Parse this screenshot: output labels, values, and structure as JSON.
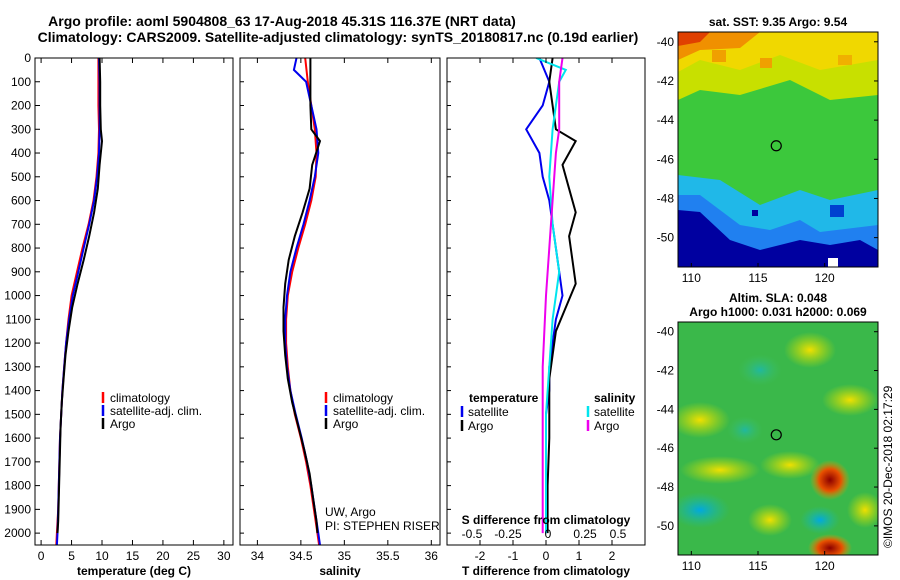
{
  "header": {
    "title1": "Argo profile: aoml 5904808_63 17-Aug-2018 45.31S 116.37E (NRT data)",
    "title2": "Climatology: CARS2009. Satellite-adjusted climatology: synTS_20180817.nc (0.19d earlier)"
  },
  "credit": {
    "line1": "UW, Argo",
    "line2": "PI: STEPHEN RISER"
  },
  "timestamp": "©IMOS 20-Dec-2018 02:17:29",
  "colors": {
    "climatology": "#ff0000",
    "satellite": "#0000ee",
    "argo": "#000000",
    "sat_salinity": "#00e5ee",
    "argo_salinity": "#ee00ee"
  },
  "chart_data": [
    {
      "type": "line",
      "xlabel": "temperature (deg C)",
      "ylabel": "",
      "xlim": [
        -1,
        31.5
      ],
      "ylim": [
        2050,
        0
      ],
      "xticks": [
        0,
        5,
        10,
        15,
        20,
        25,
        30
      ],
      "yticks": [
        0,
        100,
        200,
        300,
        400,
        500,
        600,
        700,
        800,
        900,
        1000,
        1100,
        1200,
        1300,
        1400,
        1500,
        1600,
        1700,
        1800,
        1900,
        2000
      ],
      "legend": [
        "climatology",
        "satellite-adj. clim.",
        "Argo"
      ],
      "legend_position": "lower-right",
      "series": [
        {
          "name": "climatology",
          "color": "#ff0000",
          "points": [
            [
              9.4,
              0
            ],
            [
              9.4,
              100
            ],
            [
              9.4,
              200
            ],
            [
              9.5,
              300
            ],
            [
              9.4,
              400
            ],
            [
              9.1,
              500
            ],
            [
              8.6,
              600
            ],
            [
              7.8,
              700
            ],
            [
              6.8,
              800
            ],
            [
              5.9,
              900
            ],
            [
              5.0,
              1000
            ],
            [
              4.5,
              1100
            ],
            [
              4.1,
              1200
            ],
            [
              3.8,
              1300
            ],
            [
              3.5,
              1400
            ],
            [
              3.3,
              1500
            ],
            [
              3.1,
              1600
            ],
            [
              3.0,
              1700
            ],
            [
              2.9,
              1800
            ],
            [
              2.8,
              1900
            ],
            [
              2.6,
              2000
            ],
            [
              2.5,
              2050
            ]
          ]
        },
        {
          "name": "satellite-adj. clim.",
          "color": "#0000ee",
          "points": [
            [
              9.5,
              0
            ],
            [
              9.6,
              100
            ],
            [
              9.6,
              200
            ],
            [
              9.6,
              300
            ],
            [
              9.5,
              400
            ],
            [
              9.2,
              500
            ],
            [
              8.7,
              600
            ],
            [
              7.9,
              700
            ],
            [
              7.0,
              800
            ],
            [
              6.1,
              900
            ],
            [
              5.2,
              1000
            ],
            [
              4.6,
              1100
            ],
            [
              4.1,
              1200
            ],
            [
              3.8,
              1300
            ],
            [
              3.5,
              1400
            ],
            [
              3.3,
              1500
            ],
            [
              3.1,
              1600
            ],
            [
              3.0,
              1700
            ],
            [
              2.9,
              1800
            ],
            [
              2.8,
              1900
            ],
            [
              2.7,
              2000
            ],
            [
              2.6,
              2050
            ]
          ]
        },
        {
          "name": "Argo",
          "color": "#000000",
          "points": [
            [
              9.6,
              0
            ],
            [
              9.7,
              100
            ],
            [
              9.7,
              200
            ],
            [
              9.8,
              300
            ],
            [
              10.0,
              350
            ],
            [
              9.6,
              450
            ],
            [
              9.3,
              550
            ],
            [
              8.7,
              650
            ],
            [
              7.9,
              750
            ],
            [
              7.0,
              850
            ],
            [
              6.0,
              950
            ],
            [
              5.1,
              1050
            ],
            [
              4.5,
              1150
            ],
            [
              4.0,
              1250
            ],
            [
              3.7,
              1350
            ],
            [
              3.4,
              1450
            ],
            [
              3.2,
              1550
            ],
            [
              3.1,
              1650
            ],
            [
              3.0,
              1750
            ],
            [
              2.9,
              1850
            ],
            [
              2.8,
              1950
            ],
            [
              2.7,
              2000
            ]
          ]
        }
      ]
    },
    {
      "type": "line",
      "xlabel": "salinity",
      "xlim": [
        33.8,
        36.1
      ],
      "ylim": [
        2050,
        0
      ],
      "xticks": [
        34,
        34.5,
        35,
        35.5,
        36
      ],
      "legend": [
        "climatology",
        "satellite-adj. clim.",
        "Argo"
      ],
      "legend_position": "lower-right",
      "series": [
        {
          "name": "climatology",
          "color": "#ff0000",
          "points": [
            [
              34.55,
              0
            ],
            [
              34.58,
              100
            ],
            [
              34.62,
              200
            ],
            [
              34.66,
              300
            ],
            [
              34.68,
              400
            ],
            [
              34.67,
              500
            ],
            [
              34.62,
              600
            ],
            [
              34.55,
              700
            ],
            [
              34.47,
              800
            ],
            [
              34.4,
              900
            ],
            [
              34.35,
              1000
            ],
            [
              34.33,
              1100
            ],
            [
              34.33,
              1200
            ],
            [
              34.35,
              1300
            ],
            [
              34.38,
              1400
            ],
            [
              34.43,
              1500
            ],
            [
              34.5,
              1600
            ],
            [
              34.56,
              1700
            ],
            [
              34.61,
              1800
            ],
            [
              34.65,
              1900
            ],
            [
              34.69,
              2000
            ],
            [
              34.71,
              2050
            ]
          ]
        },
        {
          "name": "satellite-adj. clim.",
          "color": "#0000ee",
          "points": [
            [
              34.45,
              0
            ],
            [
              34.42,
              50
            ],
            [
              34.56,
              100
            ],
            [
              34.62,
              200
            ],
            [
              34.68,
              300
            ],
            [
              34.7,
              400
            ],
            [
              34.66,
              500
            ],
            [
              34.6,
              600
            ],
            [
              34.53,
              700
            ],
            [
              34.45,
              800
            ],
            [
              34.38,
              900
            ],
            [
              34.34,
              1000
            ],
            [
              34.32,
              1100
            ],
            [
              34.32,
              1200
            ],
            [
              34.34,
              1300
            ],
            [
              34.38,
              1400
            ],
            [
              34.44,
              1500
            ],
            [
              34.51,
              1600
            ],
            [
              34.57,
              1700
            ],
            [
              34.62,
              1800
            ],
            [
              34.66,
              1900
            ],
            [
              34.7,
              2000
            ],
            [
              34.72,
              2050
            ]
          ]
        },
        {
          "name": "Argo",
          "color": "#000000",
          "points": [
            [
              34.61,
              0
            ],
            [
              34.61,
              100
            ],
            [
              34.61,
              200
            ],
            [
              34.62,
              300
            ],
            [
              34.72,
              350
            ],
            [
              34.63,
              450
            ],
            [
              34.6,
              550
            ],
            [
              34.52,
              650
            ],
            [
              34.43,
              750
            ],
            [
              34.36,
              850
            ],
            [
              34.32,
              950
            ],
            [
              34.3,
              1050
            ],
            [
              34.3,
              1150
            ],
            [
              34.32,
              1250
            ],
            [
              34.35,
              1350
            ],
            [
              34.4,
              1450
            ],
            [
              34.47,
              1550
            ],
            [
              34.54,
              1650
            ],
            [
              34.6,
              1750
            ],
            [
              34.64,
              1850
            ],
            [
              34.68,
              1950
            ],
            [
              34.69,
              2000
            ]
          ]
        }
      ]
    },
    {
      "type": "line",
      "xlabel": "T difference from climatology",
      "xlabel_top": "S difference from climatology",
      "xlim": [
        -3.0,
        3.0
      ],
      "ylim": [
        2050,
        0
      ],
      "xticks": [
        -2,
        -1,
        0,
        1,
        2
      ],
      "xticks_salinity": [
        "-0.5",
        "-0.25",
        "0",
        "0.25",
        "0.5"
      ],
      "legend_temperature_title": "temperature",
      "legend_salinity_title": "salinity",
      "legend": [
        "satellite",
        "Argo",
        "satellite",
        "Argo"
      ],
      "legend_position": "lower",
      "series": [
        {
          "name": "satellite",
          "color": "#0000ee",
          "points": [
            [
              -0.2,
              0
            ],
            [
              0.1,
              100
            ],
            [
              -0.1,
              200
            ],
            [
              -0.6,
              300
            ],
            [
              -0.2,
              400
            ],
            [
              -0.1,
              500
            ],
            [
              0.1,
              600
            ],
            [
              0.2,
              700
            ],
            [
              0.3,
              800
            ],
            [
              0.4,
              900
            ],
            [
              0.5,
              1000
            ],
            [
              0.3,
              1100
            ],
            [
              0.2,
              1200
            ],
            [
              0.1,
              1300
            ],
            [
              0.1,
              1400
            ],
            [
              0.0,
              1500
            ],
            [
              0.0,
              1600
            ],
            [
              0.0,
              1800
            ],
            [
              0.0,
              2000
            ]
          ]
        },
        {
          "name": "Argo",
          "color": "#000000",
          "points": [
            [
              0.2,
              0
            ],
            [
              0.1,
              100
            ],
            [
              0.2,
              200
            ],
            [
              0.3,
              300
            ],
            [
              0.9,
              350
            ],
            [
              0.5,
              450
            ],
            [
              0.7,
              550
            ],
            [
              0.9,
              650
            ],
            [
              0.7,
              750
            ],
            [
              0.8,
              850
            ],
            [
              0.9,
              950
            ],
            [
              0.6,
              1050
            ],
            [
              0.3,
              1150
            ],
            [
              0.2,
              1250
            ],
            [
              0.1,
              1350
            ],
            [
              0.1,
              1450
            ],
            [
              0.1,
              1600
            ],
            [
              0.05,
              1800
            ],
            [
              0.05,
              2000
            ]
          ]
        },
        {
          "name": "satellite",
          "color": "#00e5ee",
          "points": [
            [
              -0.3,
              0
            ],
            [
              0.6,
              50
            ],
            [
              0.4,
              100
            ],
            [
              0.3,
              200
            ],
            [
              0.2,
              300
            ],
            [
              0.1,
              500
            ],
            [
              0.2,
              700
            ],
            [
              0.4,
              900
            ],
            [
              0.3,
              1000
            ],
            [
              0.2,
              1100
            ],
            [
              0.1,
              1300
            ],
            [
              0.0,
              1500
            ],
            [
              0.0,
              2000
            ]
          ]
        },
        {
          "name": "Argo",
          "color": "#ee00ee",
          "points": [
            [
              0.5,
              0
            ],
            [
              0.4,
              100
            ],
            [
              0.4,
              300
            ],
            [
              0.3,
              400
            ],
            [
              0.2,
              600
            ],
            [
              0.1,
              800
            ],
            [
              0.0,
              1000
            ],
            [
              -0.1,
              1300
            ],
            [
              -0.1,
              1500
            ],
            [
              -0.1,
              1800
            ],
            [
              -0.1,
              2000
            ]
          ]
        }
      ]
    },
    {
      "type": "heatmap",
      "title": "sat. SST: 9.35 Argo: 9.54",
      "xlim": [
        109,
        124
      ],
      "ylim": [
        -51.5,
        -39.5
      ],
      "xticks": [
        110,
        115,
        120
      ],
      "yticks": [
        -40,
        -42,
        -44,
        -46,
        -48,
        -50
      ],
      "marker": {
        "lon": 116.37,
        "lat": -45.31
      }
    },
    {
      "type": "heatmap",
      "title": "Altim. SLA: 0.048",
      "subtitle": "Argo h1000: 0.031 h2000: 0.069",
      "xlim": [
        109,
        124
      ],
      "ylim": [
        -51.5,
        -39.5
      ],
      "xticks": [
        110,
        115,
        120
      ],
      "yticks": [
        -40,
        -42,
        -44,
        -46,
        -48,
        -50
      ],
      "marker": {
        "lon": 116.37,
        "lat": -45.31
      }
    }
  ]
}
